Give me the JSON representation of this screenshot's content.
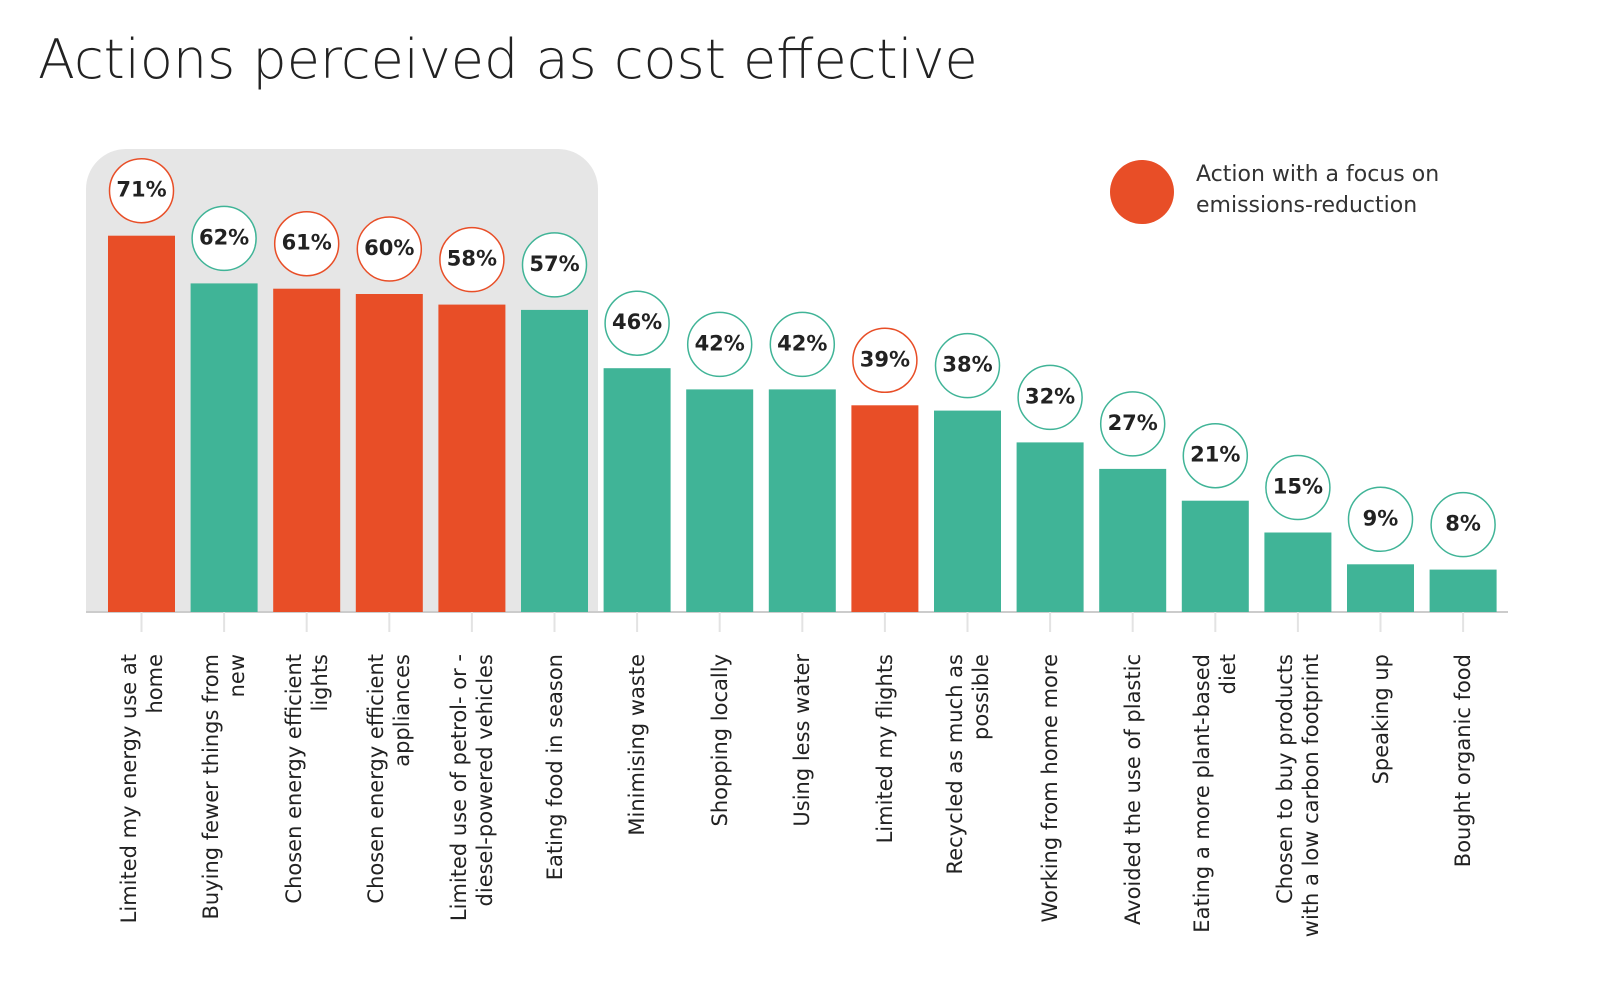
{
  "chart_data": {
    "type": "bar",
    "title": "Actions perceived as cost effective",
    "categories": [
      "Limited my energy use at home",
      "Buying fewer things from new",
      "Chosen energy efficient lights",
      "Chosen energy efficient appliances",
      "Limited use of petrol- or - diesel-powered vehicles",
      "Eating food in season",
      "Minimising waste",
      "Shopping locally",
      "Using less water",
      "Limited my flights",
      "Recycled as much as possible",
      "Working from home more",
      "Avoided the use of plastic",
      "Eating a more plant-based diet",
      "Chosen to buy products with a low carbon footprint",
      "Speaking up",
      "Bought organic food"
    ],
    "values": [
      71,
      62,
      61,
      60,
      58,
      57,
      46,
      42,
      42,
      39,
      38,
      32,
      27,
      21,
      15,
      9,
      8
    ],
    "value_labels": [
      "71%",
      "62%",
      "61%",
      "60%",
      "58%",
      "57%",
      "46%",
      "42%",
      "42%",
      "39%",
      "38%",
      "32%",
      "27%",
      "21%",
      "15%",
      "9%",
      "8%"
    ],
    "colors": [
      "#e84e27",
      "#40b497",
      "#e84e27",
      "#e84e27",
      "#e84e27",
      "#40b497",
      "#40b497",
      "#40b497",
      "#40b497",
      "#e84e27",
      "#40b497",
      "#40b497",
      "#40b497",
      "#40b497",
      "#40b497",
      "#40b497",
      "#40b497"
    ],
    "legend": {
      "label": "Action with a focus on emissions-reduction",
      "color": "#e84e27"
    }
  }
}
